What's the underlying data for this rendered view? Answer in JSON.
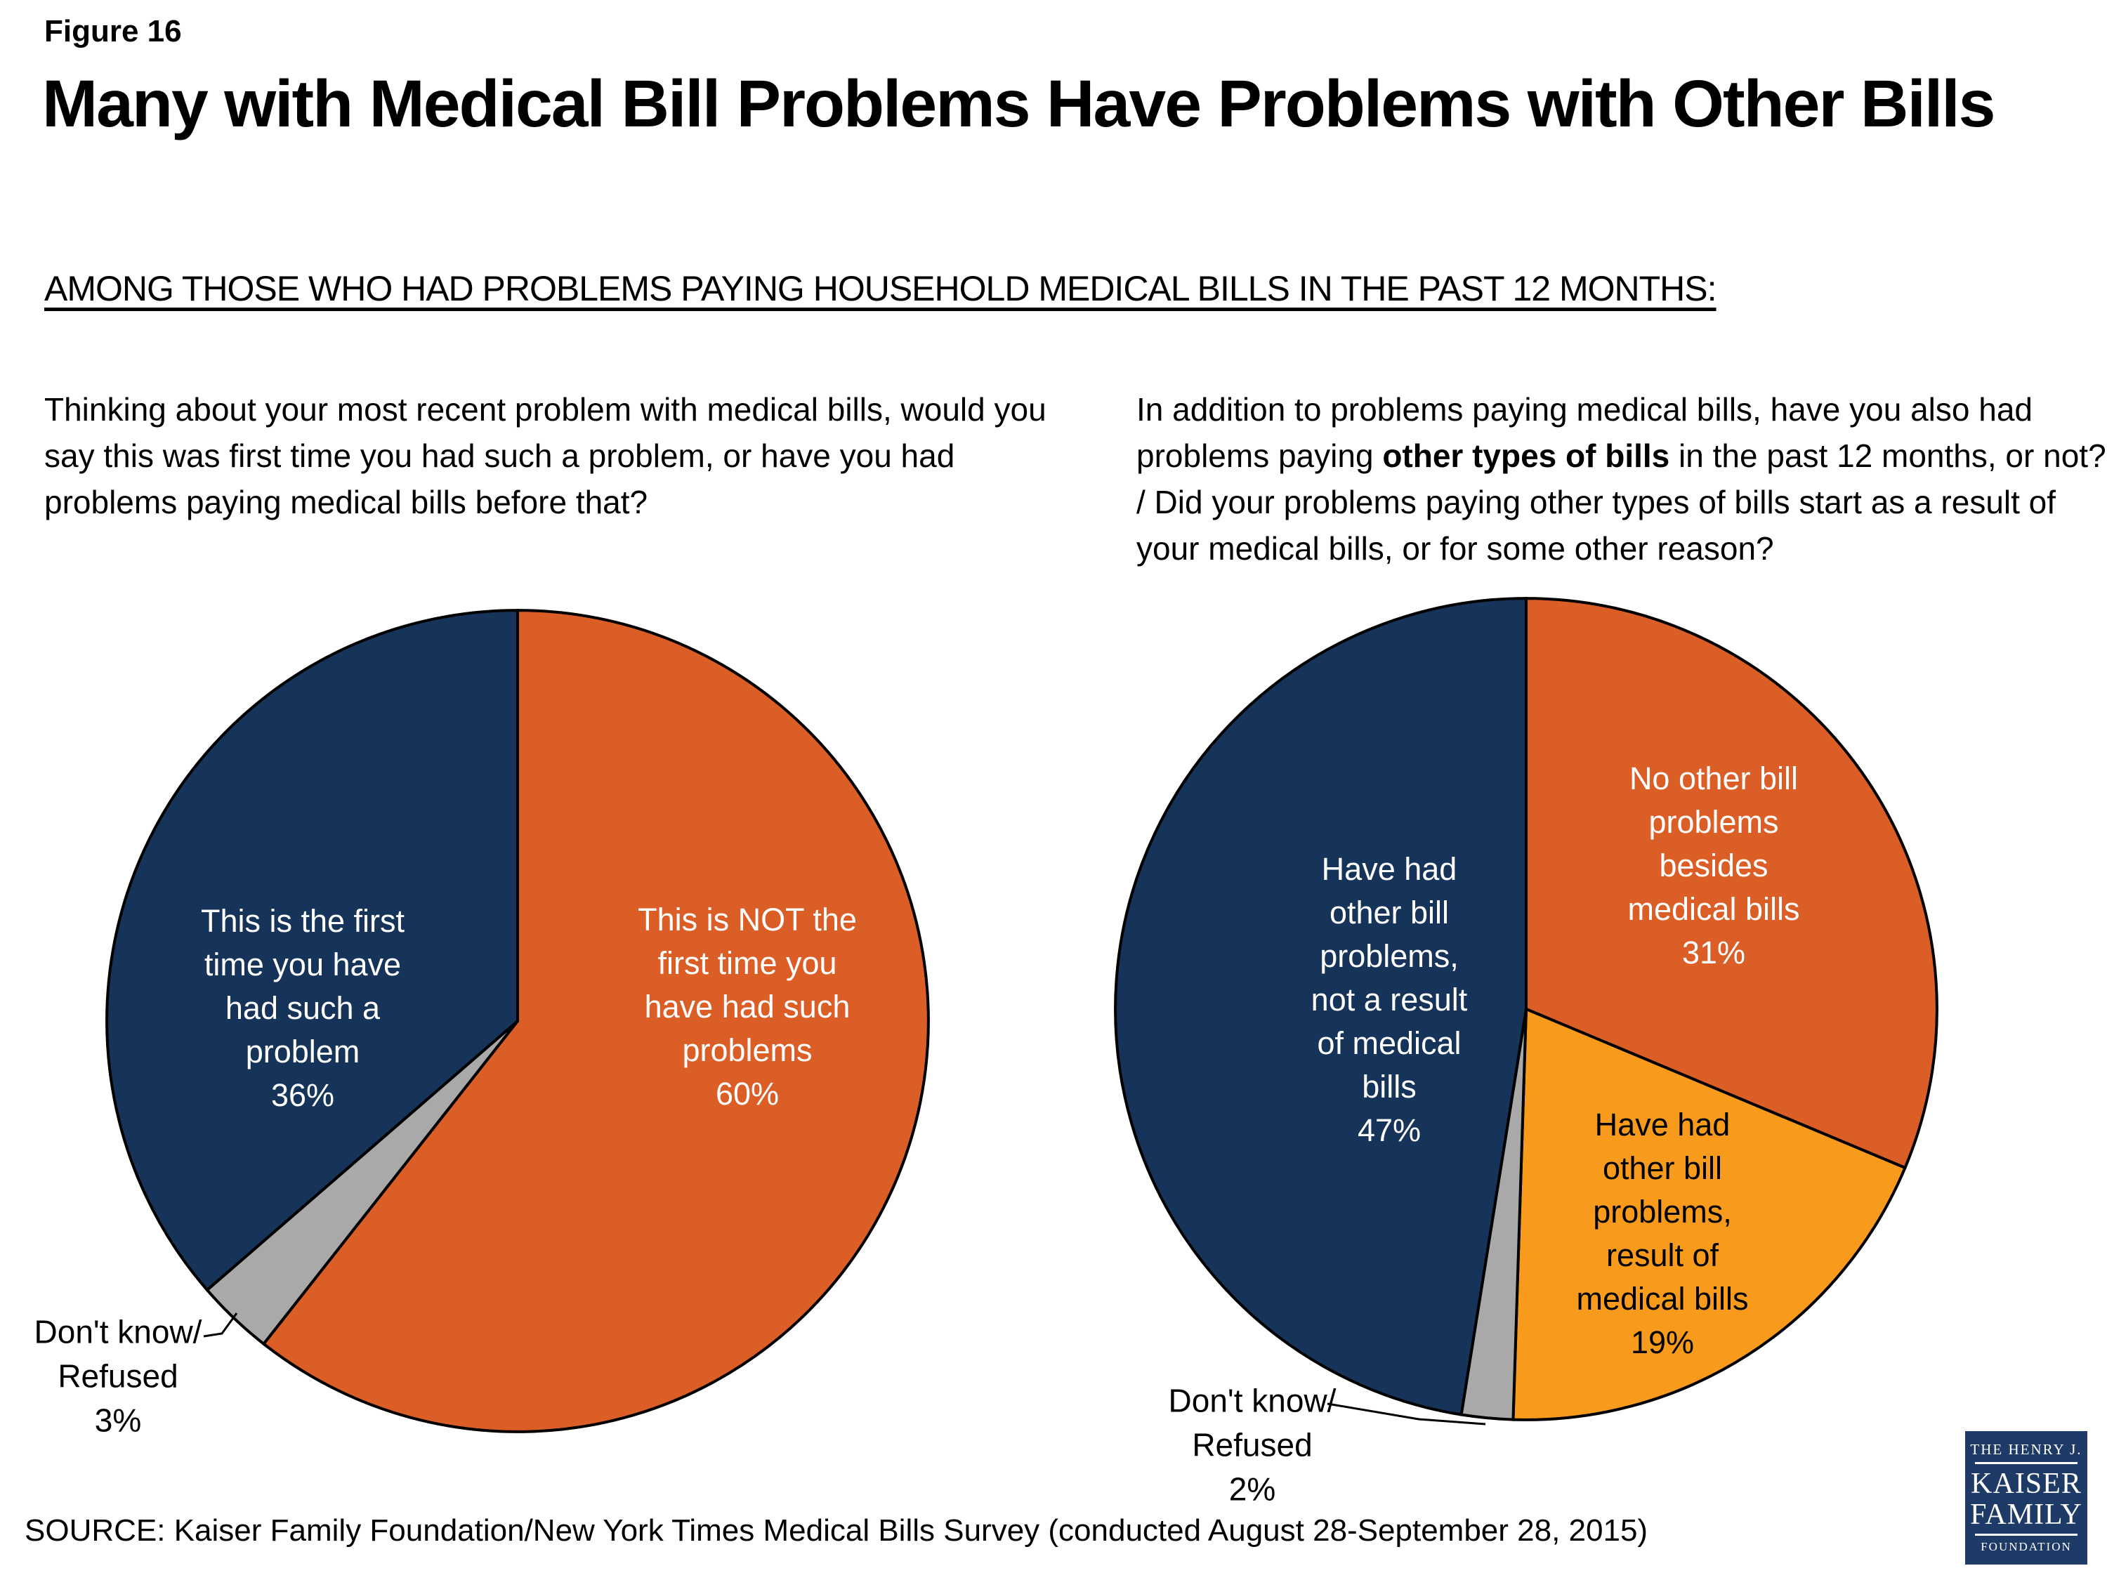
{
  "page": {
    "figure_label": "Figure 16",
    "title": "Many with Medical Bill Problems Have Problems with Other Bills",
    "subtitle": "AMONG THOSE WHO HAD PROBLEMS PAYING HOUSEHOLD MEDICAL BILLS IN THE PAST 12 MONTHS:",
    "source": "SOURCE: Kaiser Family Foundation/New York Times Medical Bills Survey (conducted August 28-September 28, 2015)",
    "background_color": "#FFFFFF"
  },
  "questions": {
    "left": "Thinking about your most recent problem with medical bills, would you say this was first time you had such a problem, or have you had problems paying medical bills before that?",
    "right_prefix": "In addition to problems paying medical bills, have you also had problems paying ",
    "right_bold": "other types of bills",
    "right_suffix": " in the past 12 months, or not? / Did your problems paying other types of bills start as a result of your medical bills, or for some other reason?"
  },
  "chart_data": [
    {
      "type": "pie",
      "title": "First time having problems paying medical bills",
      "start_angle": "12 o'clock",
      "direction": "clockwise",
      "slices": [
        {
          "label": "This is NOT the first time you have had such problems",
          "value": 60,
          "display": "This is NOT the\nfirst time you\nhave had such\nproblems\n60%",
          "color": "#DC5E27",
          "text_color": "#FFFFFF"
        },
        {
          "label": "Don't know/Refused",
          "value": 3,
          "display": "Don't know/\nRefused\n3%",
          "color": "#A9A9A9",
          "text_color": "#000000"
        },
        {
          "label": "This is the first time you have had such a problem",
          "value": 36,
          "display": "This is the first\ntime you have\nhad such a\nproblem\n36%",
          "color": "#16345A",
          "text_color": "#FFFFFF"
        }
      ]
    },
    {
      "type": "pie",
      "title": "Problems paying other types of bills",
      "start_angle": "12 o'clock",
      "direction": "clockwise",
      "slices": [
        {
          "label": "No other bill problems besides medical bills",
          "value": 31,
          "display": "No other bill\nproblems\nbesides\nmedical bills\n31%",
          "color": "#DC5E27",
          "text_color": "#FFFFFF"
        },
        {
          "label": "Have had other bill problems, result of medical bills",
          "value": 19,
          "display": "Have had\nother bill\nproblems,\nresult of\nmedical bills\n19%",
          "color": "#F89B1C",
          "text_color": "#000000"
        },
        {
          "label": "Don't know/Refused",
          "value": 2,
          "display": "Don't know/\nRefused\n2%",
          "color": "#A9A9A9",
          "text_color": "#000000"
        },
        {
          "label": "Have had other bill problems, not a result of medical bills",
          "value": 47,
          "display": "Have had\nother bill\nproblems,\nnot a result\nof medical\nbills\n47%",
          "color": "#16345A",
          "text_color": "#FFFFFF"
        }
      ]
    }
  ],
  "logo": {
    "line1": "THE HENRY J.",
    "line2": "KAISER",
    "line3": "FAMILY",
    "line4": "FOUNDATION",
    "color": "#1E3A66"
  }
}
